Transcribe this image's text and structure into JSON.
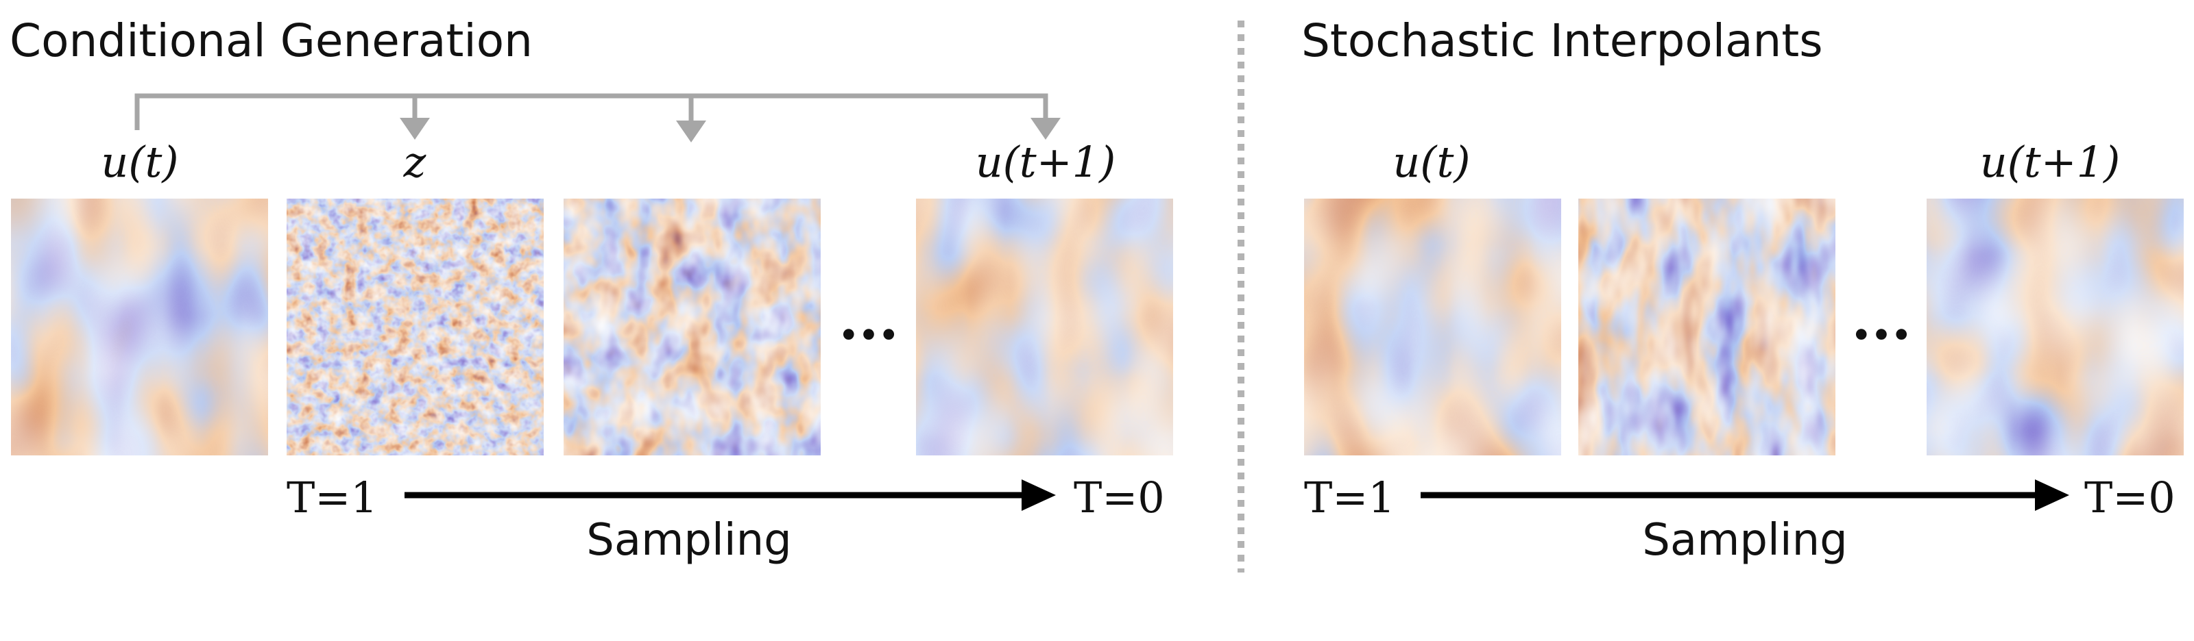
{
  "left_panel": {
    "title": "Conditional Generation",
    "label_u_t": "u(t)",
    "label_z": "z",
    "label_u_t1": "u(t+1)",
    "ellipsis": "...",
    "t_start": "T=1",
    "t_end": "T=0",
    "arrow_caption": "Sampling",
    "frames": [
      {
        "kind": "flow",
        "variant": "a"
      },
      {
        "kind": "noise",
        "variant": "z"
      },
      {
        "kind": "partial",
        "variant": "mid"
      },
      {
        "kind": "flow",
        "variant": "b"
      }
    ]
  },
  "right_panel": {
    "title": "Stochastic Interpolants",
    "label_u_t": "u(t)",
    "label_u_t1": "u(t+1)",
    "ellipsis": "...",
    "t_start": "T=1",
    "t_end": "T=0",
    "arrow_caption": "Sampling",
    "frames": [
      {
        "kind": "flow",
        "variant": "a"
      },
      {
        "kind": "partial",
        "variant": "interp"
      },
      {
        "kind": "flow",
        "variant": "b"
      }
    ]
  },
  "colors": {
    "connector_gray": "#a6a6a6",
    "divider_gray": "#b3b3b3",
    "arrow_black": "#000000",
    "colormap": [
      "#2a0b3d",
      "#4b1a6e",
      "#6b5fcf",
      "#9bb7f0",
      "#f0b27a",
      "#c96a3b",
      "#7a1e2b"
    ]
  }
}
